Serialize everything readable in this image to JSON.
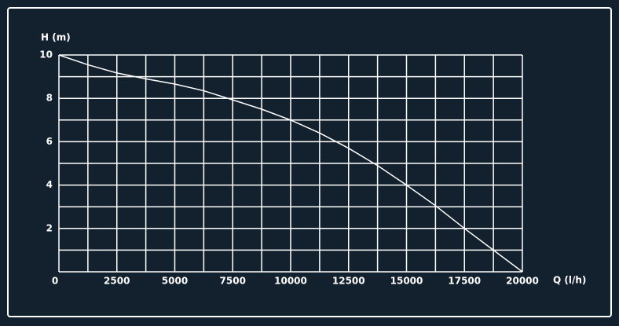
{
  "chart_data": {
    "type": "line",
    "ylabel": "H (m)",
    "xlabel": "Q (l/h)",
    "x": [
      0,
      1250,
      2500,
      3750,
      5000,
      6250,
      7500,
      8750,
      10000,
      11250,
      12500,
      13750,
      15000,
      16250,
      17500,
      18750,
      20000
    ],
    "series": [
      {
        "color": "#ffffff",
        "values": [
          10,
          9.55,
          9.17,
          8.9,
          8.66,
          8.35,
          7.93,
          7.5,
          7.0,
          6.4,
          5.7,
          4.9,
          4.0,
          3.05,
          2.0,
          1.0,
          0
        ]
      }
    ],
    "xlim": [
      0,
      20000
    ],
    "ylim": [
      0,
      10
    ],
    "xticks": [
      0,
      2500,
      5000,
      7500,
      10000,
      12500,
      15000,
      17500,
      20000
    ],
    "yticks": [
      2,
      4,
      6,
      8,
      10
    ],
    "xgrid": [
      0,
      1250,
      2500,
      3750,
      5000,
      6250,
      7500,
      8750,
      10000,
      11250,
      12500,
      13750,
      15000,
      16250,
      17500,
      18750,
      20000
    ],
    "ygrid": [
      0,
      1,
      2,
      3,
      4,
      5,
      6,
      7,
      8,
      9,
      10
    ],
    "grid": true
  }
}
